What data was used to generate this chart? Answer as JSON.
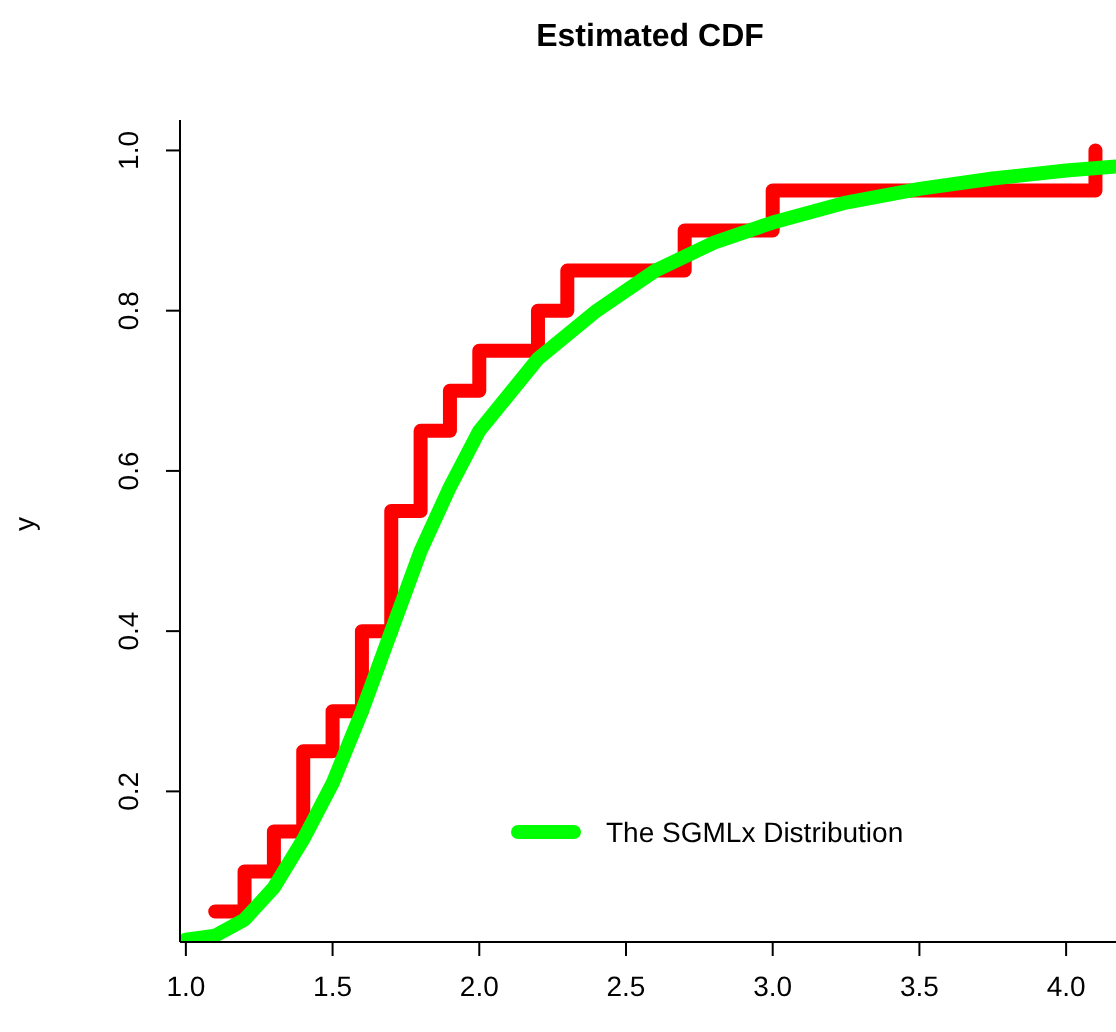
{
  "chart_data": {
    "type": "step",
    "title": "Estimated CDF",
    "ylabel": "y",
    "xlim": [
      0.98,
      4.17
    ],
    "ylim": [
      0.012,
      1.038
    ],
    "xticks": [
      {
        "value": 1,
        "label": "1.0"
      },
      {
        "value": 1.5,
        "label": "1.5"
      },
      {
        "value": 2,
        "label": "2.0"
      },
      {
        "value": 2.5,
        "label": "2.5"
      },
      {
        "value": 3,
        "label": "3.0"
      },
      {
        "value": 3.5,
        "label": "3.5"
      },
      {
        "value": 4,
        "label": "4.0"
      }
    ],
    "yticks": [
      {
        "value": 0.2,
        "label": "0.2"
      },
      {
        "value": 0.4,
        "label": "0.4"
      },
      {
        "value": 0.6,
        "label": "0.6"
      },
      {
        "value": 0.8,
        "label": "0.8"
      },
      {
        "value": 1,
        "label": "1.0"
      }
    ],
    "grid": false,
    "legend": "bottom right",
    "series": [
      {
        "type": "step",
        "color": "#ff0000",
        "x": [
          1.1,
          1.2,
          1.3,
          1.4,
          1.5,
          1.6,
          1.7,
          1.8,
          1.9,
          2.0,
          2.2,
          2.3,
          2.7,
          3.0,
          4.1
        ],
        "values": [
          0.05,
          0.1,
          0.15,
          0.25,
          0.3,
          0.4,
          0.55,
          0.65,
          0.7,
          0.75,
          0.8,
          0.85,
          0.9,
          0.95,
          1.0
        ]
      },
      {
        "type": "line",
        "name": "The SGMLx Distribution",
        "color": "#00ff00",
        "x": [
          1.0,
          1.1,
          1.2,
          1.3,
          1.4,
          1.5,
          1.6,
          1.7,
          1.8,
          1.9,
          2.0,
          2.2,
          2.4,
          2.6,
          2.8,
          3.0,
          3.25,
          3.5,
          3.75,
          4.0,
          4.17
        ],
        "values": [
          0.015,
          0.02,
          0.04,
          0.08,
          0.14,
          0.21,
          0.3,
          0.4,
          0.5,
          0.58,
          0.65,
          0.74,
          0.8,
          0.85,
          0.885,
          0.91,
          0.935,
          0.952,
          0.965,
          0.975,
          0.98
        ]
      }
    ]
  }
}
